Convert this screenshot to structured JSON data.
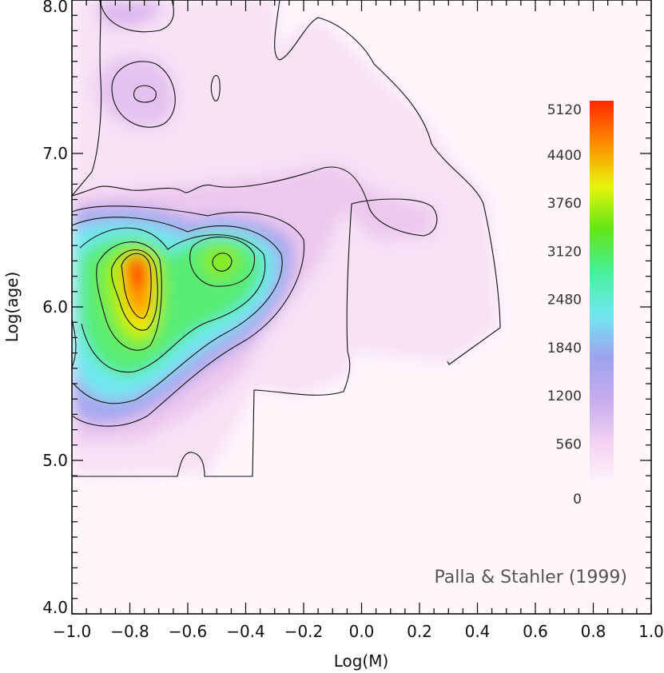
{
  "chart_data": {
    "type": "heatmap",
    "title": "",
    "xlabel": "Log(M)",
    "ylabel": "Log(age)",
    "xlim": [
      -1.0,
      1.0
    ],
    "ylim": [
      4.0,
      8.0
    ],
    "x_ticks": [
      -1.0,
      -0.8,
      -0.6,
      -0.4,
      -0.2,
      0.0,
      0.2,
      0.4,
      0.6,
      0.8,
      1.0
    ],
    "x_tick_labels": [
      "−1.0",
      "−0.8",
      "−0.6",
      "−0.4",
      "−0.2",
      "0.0",
      "0.2",
      "0.4",
      "0.6",
      "0.8",
      "1.0"
    ],
    "y_ticks": [
      4.0,
      5.0,
      6.0,
      7.0,
      8.0
    ],
    "y_tick_labels": [
      "4.0",
      "5.0",
      "6.0",
      "7.0",
      "8.0"
    ],
    "annotation": "Palla & Stahler (1999)",
    "colorbar": {
      "levels": [
        0,
        560,
        1200,
        1840,
        2480,
        3120,
        3760,
        4400,
        5120
      ],
      "labels": [
        "0",
        "560",
        "1200",
        "1840",
        "2480",
        "3120",
        "3760",
        "4400",
        "5120"
      ],
      "colors": [
        "#fff6fc",
        "#f3d2f2",
        "#c6acec",
        "#9fa2ef",
        "#6fe8f0",
        "#47ef9a",
        "#62e617",
        "#e7f40c",
        "#ff8c00",
        "#ff2a00"
      ]
    },
    "density_peaks": [
      {
        "x": -0.78,
        "y": 6.25,
        "value": 5000
      },
      {
        "x": -0.77,
        "y": 6.05,
        "value": 4700
      },
      {
        "x": -0.48,
        "y": 6.28,
        "value": 3500
      },
      {
        "x": -0.75,
        "y": 7.4,
        "value": 1400
      },
      {
        "x": -0.8,
        "y": 7.95,
        "value": 1000
      },
      {
        "x": -0.98,
        "y": 5.8,
        "value": 1700
      },
      {
        "x": 0.25,
        "y": 6.55,
        "value": 500
      }
    ]
  }
}
